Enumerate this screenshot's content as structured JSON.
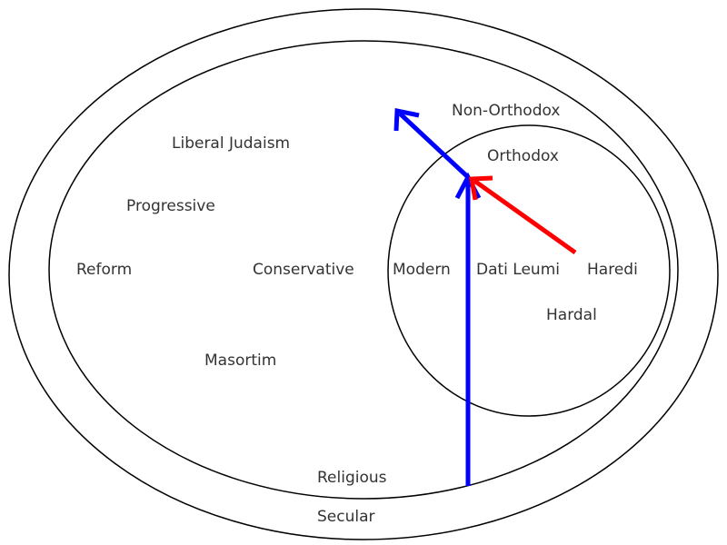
{
  "colors": {
    "outline": "#000000",
    "text": "#333333",
    "arrow_blue": "#0000ff",
    "arrow_red": "#ff0000"
  },
  "regions": {
    "secular": "Secular",
    "religious": "Religious",
    "non_orthodox": "Non-Orthodox",
    "orthodox": "Orthodox"
  },
  "movements": {
    "liberal_judaism": "Liberal Judaism",
    "progressive": "Progressive",
    "reform": "Reform",
    "conservative": "Conservative",
    "masortim": "Masortim",
    "modern": "Modern",
    "dati_leumi": "Dati Leumi",
    "haredi": "Haredi",
    "hardal": "Hardal"
  }
}
